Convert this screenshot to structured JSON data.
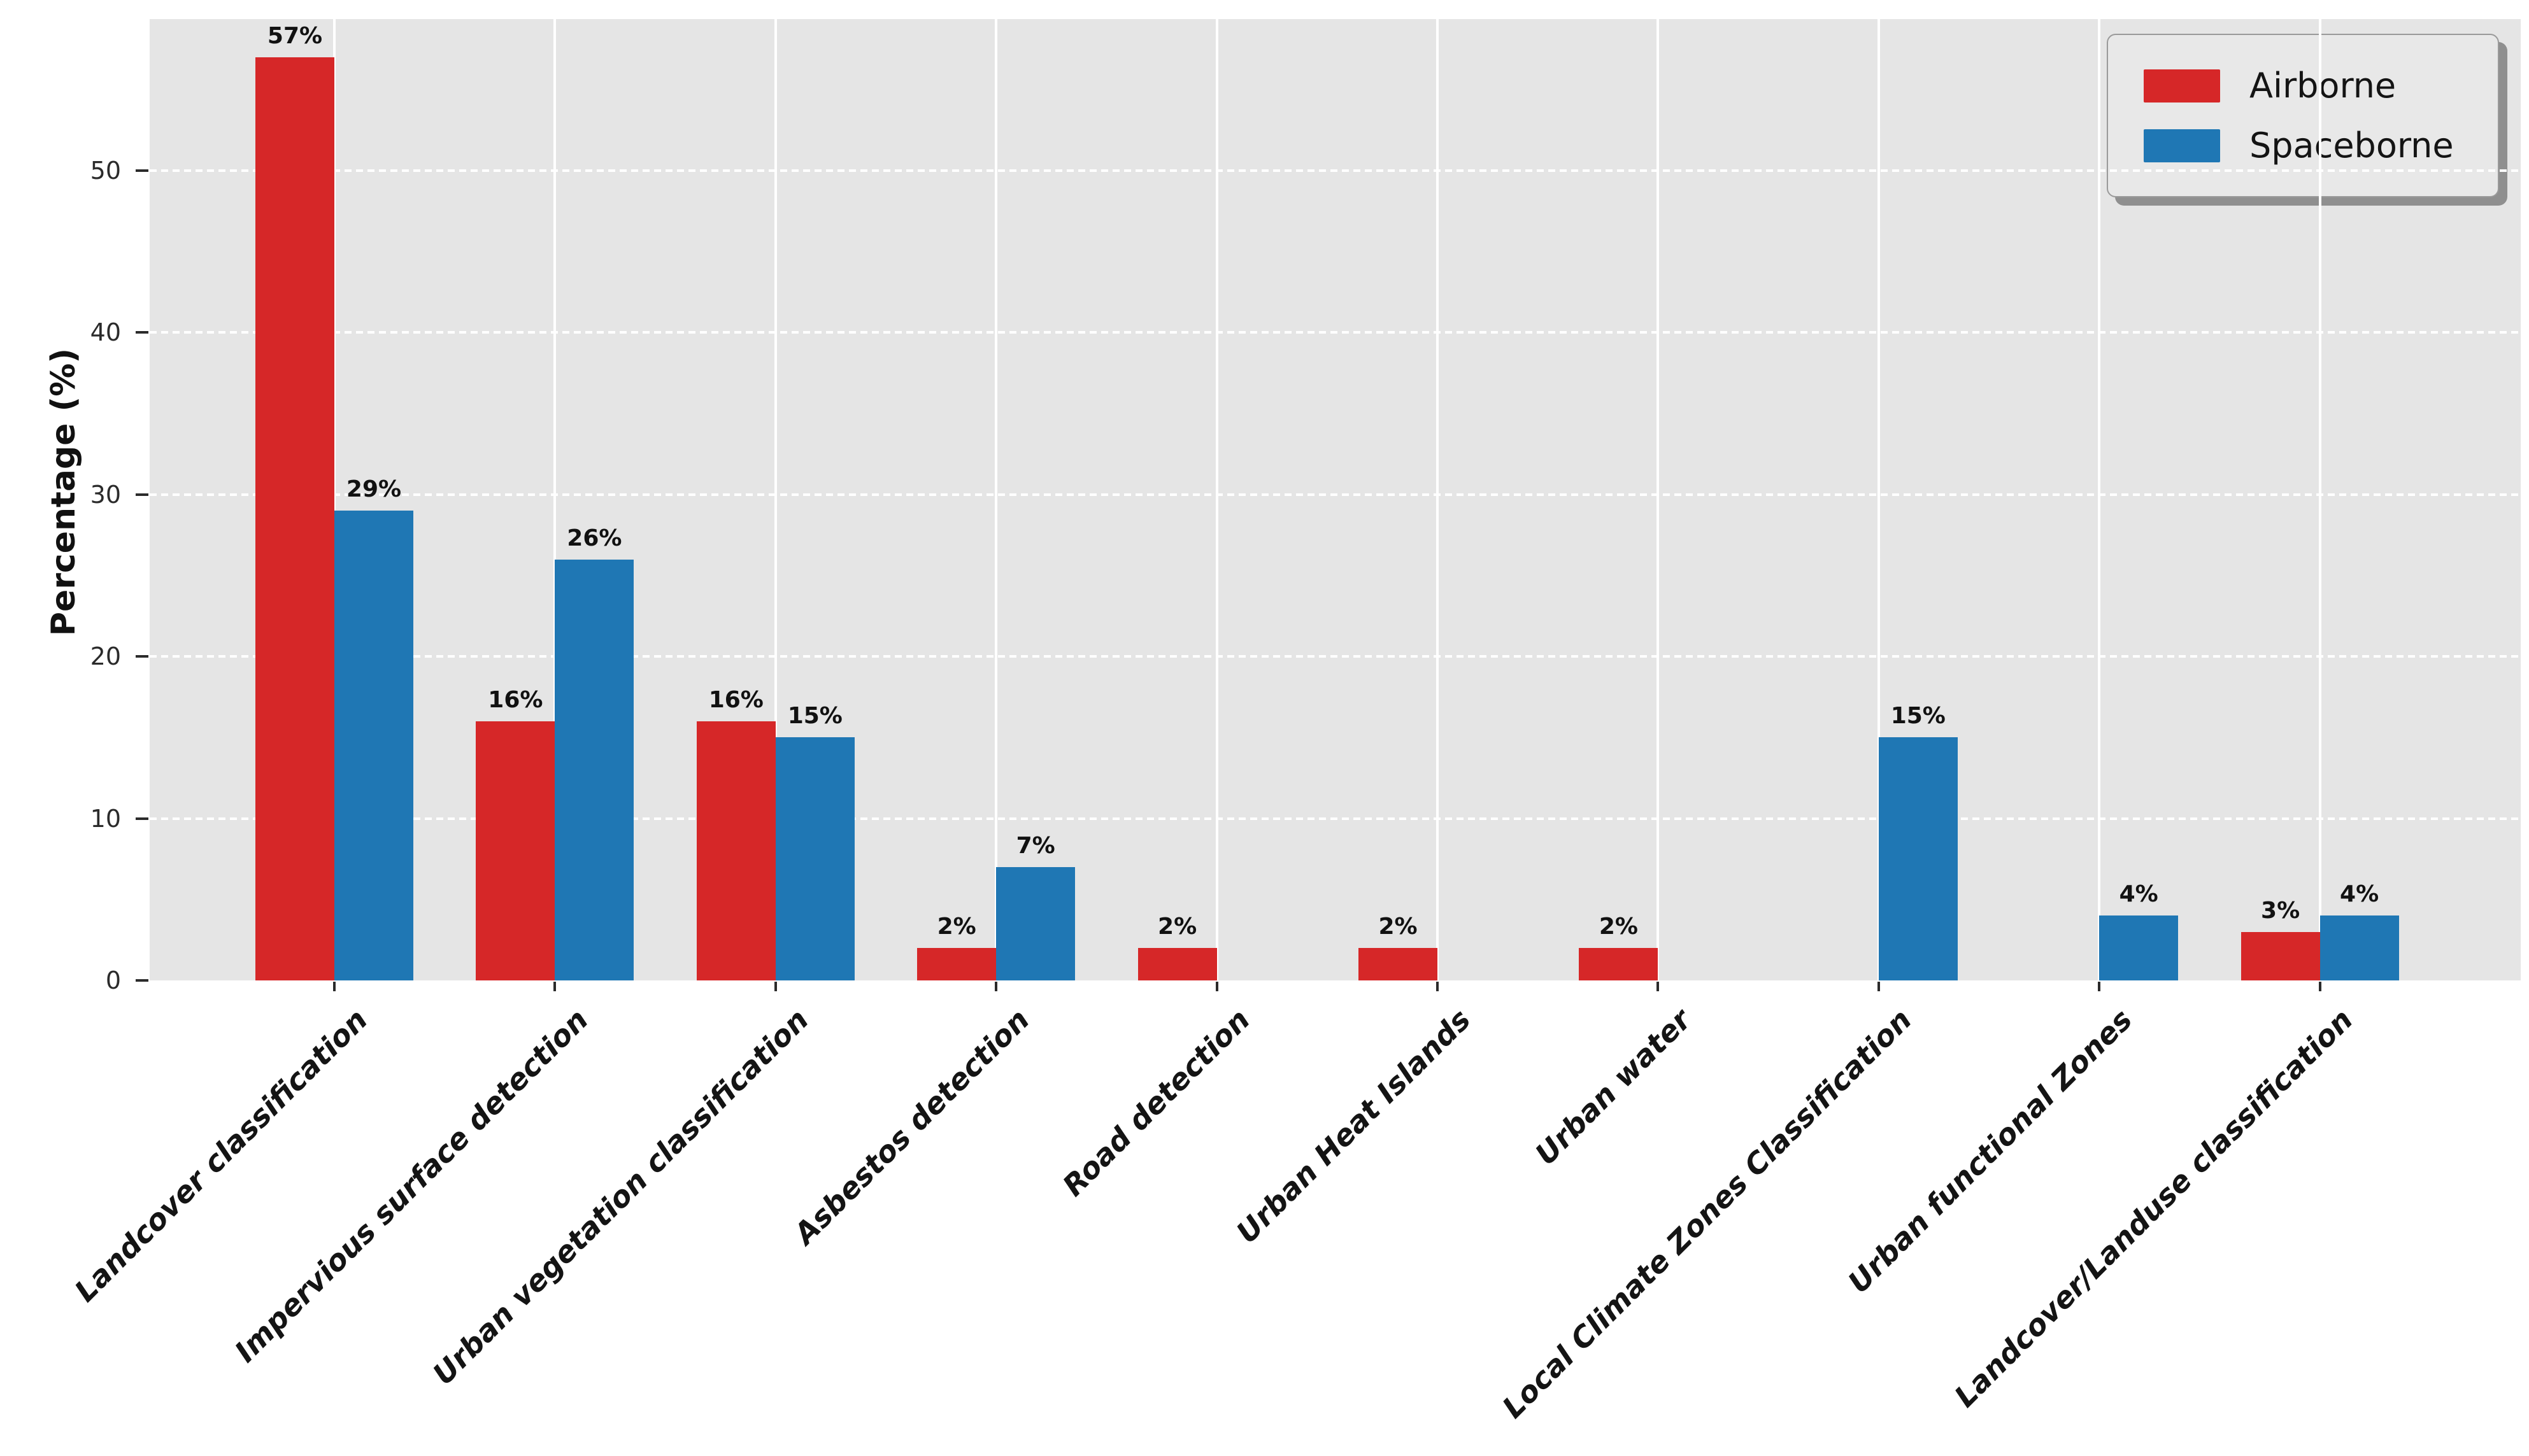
{
  "chart_data": {
    "type": "bar",
    "title": "",
    "xlabel": "",
    "ylabel": "Percentage (%)",
    "ylim": [
      0,
      59.4
    ],
    "yticks": [
      0,
      10,
      20,
      30,
      40,
      50
    ],
    "grid": {
      "horizontal_style": "dashed",
      "vertical_style": "solid",
      "color": "#ffffff"
    },
    "plot_background": "#e5e5e5",
    "bar_value_suffix": "%",
    "legend": {
      "position": "upper-right",
      "entries": [
        "Airborne",
        "Spaceborne"
      ]
    },
    "categories": [
      "Landcover classification",
      "Impervious surface detection",
      "Urban vegetation classification",
      "Asbestos detection",
      "Road detection",
      "Urban Heat Islands",
      "Urban water",
      "Local Climate Zones Classification",
      "Urban functional Zones",
      "Landcover/Landuse classification"
    ],
    "series": [
      {
        "name": "Airborne",
        "color": "#d62728",
        "values": [
          57,
          16,
          16,
          2,
          2,
          2,
          2,
          null,
          null,
          3
        ]
      },
      {
        "name": "Spaceborne",
        "color": "#1f77b4",
        "values": [
          29,
          26,
          15,
          7,
          null,
          null,
          null,
          15,
          4,
          4
        ]
      }
    ]
  }
}
